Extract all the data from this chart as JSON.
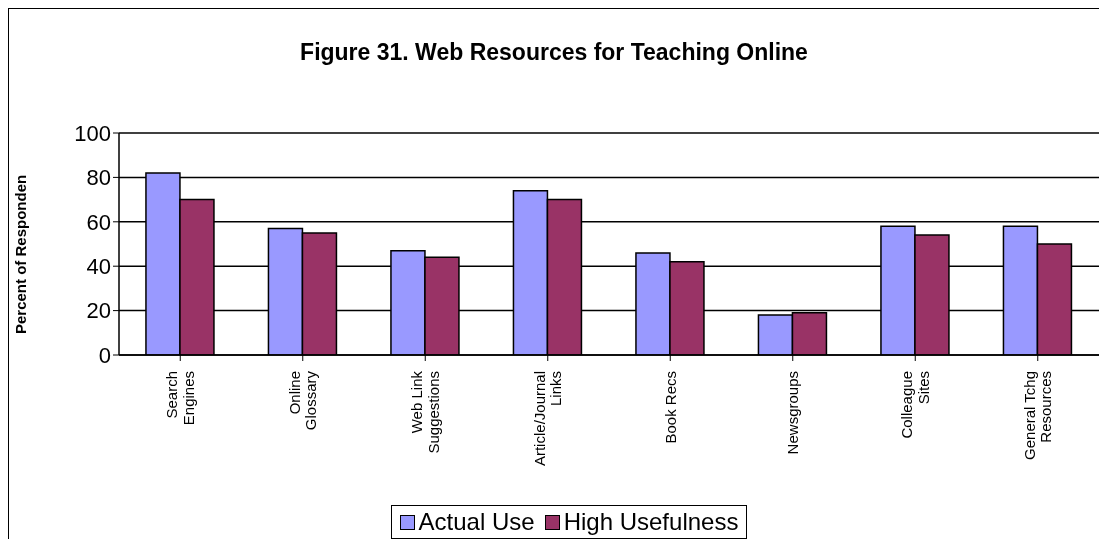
{
  "chart_data": {
    "type": "bar",
    "title": "Figure 31. Web Resources for Teaching Online",
    "ylabel": "Percent of Responden",
    "categories": [
      "Search Engines",
      "Online Glossary",
      "Web Link Suggestions",
      "Article/Journal Links",
      "Book Recs",
      "Newsgroups",
      "Colleague Sites",
      "General Tchg Resources"
    ],
    "series": [
      {
        "name": "Actual Use",
        "color": "#9999ff",
        "values": [
          82,
          57,
          47,
          74,
          46,
          18,
          58,
          58
        ]
      },
      {
        "name": "High Usefulness",
        "color": "#993366",
        "values": [
          70,
          55,
          44,
          70,
          42,
          19,
          54,
          50
        ]
      }
    ],
    "ylim": [
      0,
      100
    ],
    "yticks": [
      0,
      20,
      40,
      60,
      80,
      100
    ],
    "grid": "y",
    "legend": "bottom"
  }
}
